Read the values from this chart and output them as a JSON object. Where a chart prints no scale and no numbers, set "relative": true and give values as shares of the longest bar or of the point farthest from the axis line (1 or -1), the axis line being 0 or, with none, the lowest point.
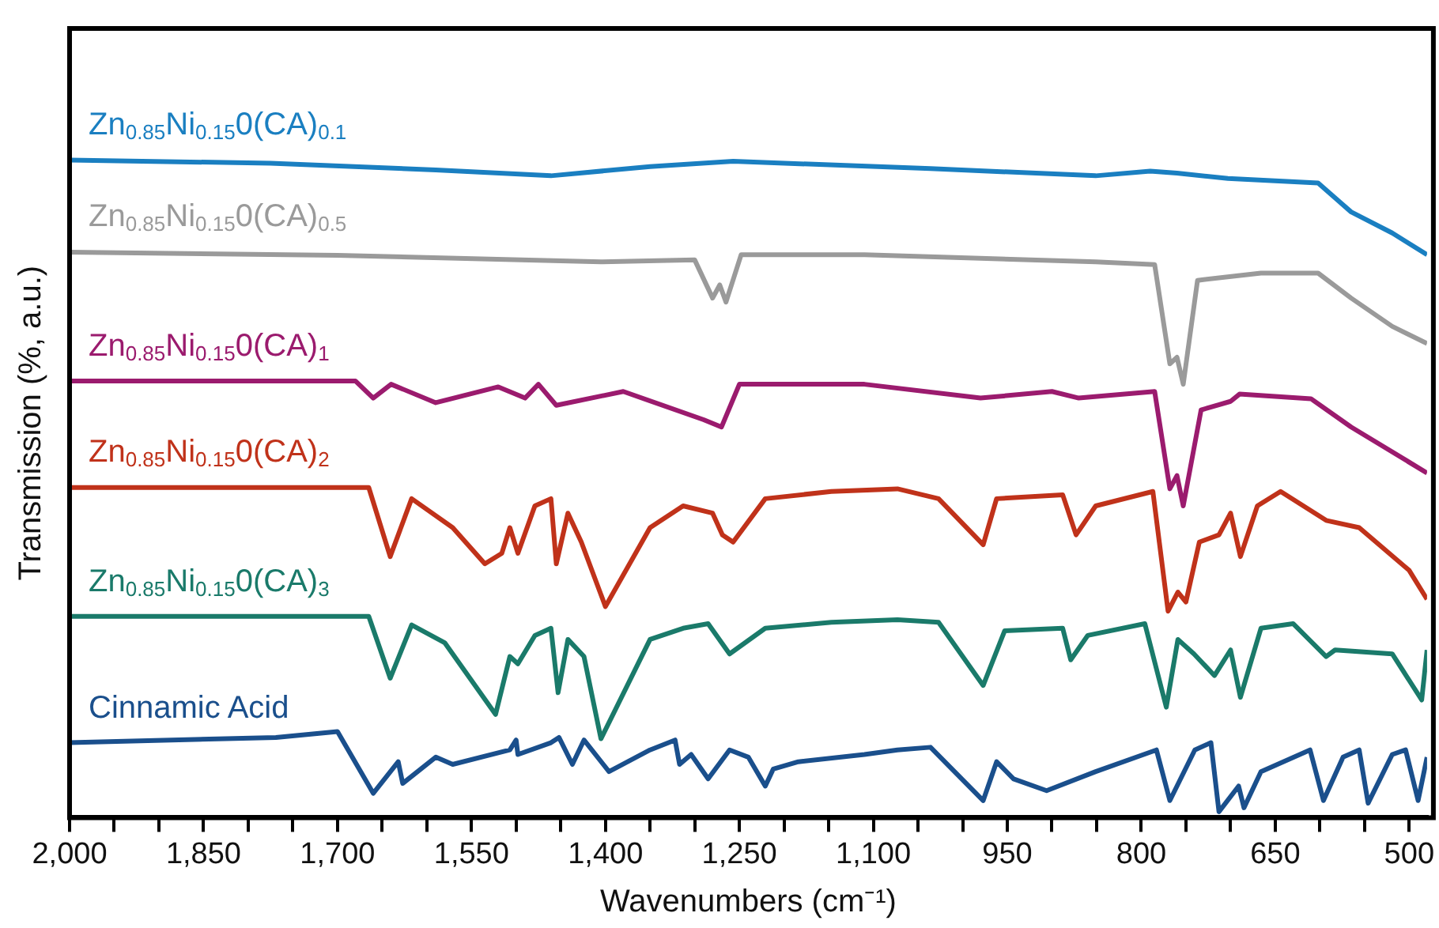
{
  "chart_data": {
    "type": "line",
    "relative": true,
    "xlabel": "Wavenumbers (cm⁻¹)",
    "ylabel": "Transmission (%, a.u.)",
    "marker": "none",
    "xlim": [
      2000,
      480
    ],
    "xticks": [
      {
        "value": 2000,
        "label": "2,000"
      },
      {
        "value": 1950,
        "label": null
      },
      {
        "value": 1900,
        "label": null
      },
      {
        "value": 1850,
        "label": "1,850"
      },
      {
        "value": 1800,
        "label": null
      },
      {
        "value": 1750,
        "label": null
      },
      {
        "value": 1700,
        "label": "1,700"
      },
      {
        "value": 1650,
        "label": null
      },
      {
        "value": 1600,
        "label": null
      },
      {
        "value": 1550,
        "label": "1,550"
      },
      {
        "value": 1500,
        "label": null
      },
      {
        "value": 1450,
        "label": null
      },
      {
        "value": 1400,
        "label": "1,400"
      },
      {
        "value": 1350,
        "label": null
      },
      {
        "value": 1300,
        "label": null
      },
      {
        "value": 1250,
        "label": "1,250"
      },
      {
        "value": 1200,
        "label": null
      },
      {
        "value": 1150,
        "label": null
      },
      {
        "value": 1100,
        "label": "1,100"
      },
      {
        "value": 1050,
        "label": null
      },
      {
        "value": 1000,
        "label": null
      },
      950,
      {
        "value": 900,
        "label": null
      },
      {
        "value": 850,
        "label": null
      },
      800,
      {
        "value": 750,
        "label": null
      },
      {
        "value": 700,
        "label": null
      },
      650,
      {
        "value": 600,
        "label": null
      },
      {
        "value": 550,
        "label": null
      },
      500
    ],
    "series": [
      {
        "name": "Zn$_{0.85}$Ni$_{0.15}$0(CA)$_{0.1}$",
        "color": "#1a7fc1",
        "x": [
          2000,
          1775,
          1590,
          1461,
          1350,
          1257,
          1036,
          851,
          790,
          760,
          703,
          602,
          565,
          519,
          480
        ],
        "values": [
          1.0,
          0.995,
          0.985,
          0.976,
          0.99,
          0.998,
          0.987,
          0.976,
          0.983,
          0.98,
          0.972,
          0.965,
          0.921,
          0.889,
          0.856
        ]
      },
      {
        "name": "Zn$_{0.85}$Ni$_{0.15}$0(CA)$_{0.5}$",
        "color": "#9a9a9a",
        "x": [
          2000,
          1700,
          1405,
          1300,
          1280,
          1272,
          1265,
          1248,
          1110,
          851,
          785,
          768,
          760,
          753,
          737,
          666,
          602,
          565,
          519,
          480
        ],
        "values": [
          0.86,
          0.855,
          0.845,
          0.848,
          0.79,
          0.81,
          0.784,
          0.856,
          0.856,
          0.845,
          0.841,
          0.69,
          0.7,
          0.659,
          0.817,
          0.828,
          0.828,
          0.79,
          0.747,
          0.721
        ]
      },
      {
        "name": "Zn$_{0.85}$Ni$_{0.15}$0(CA)$_{1}$",
        "color": "#9b1b6e",
        "x": [
          2000,
          1680,
          1660,
          1640,
          1590,
          1520,
          1490,
          1475,
          1455,
          1380,
          1290,
          1270,
          1250,
          1110,
          980,
          900,
          870,
          785,
          768,
          760,
          753,
          733,
          700,
          690,
          610,
          565,
          480
        ],
        "values": [
          0.664,
          0.664,
          0.638,
          0.659,
          0.631,
          0.655,
          0.638,
          0.659,
          0.627,
          0.648,
          0.605,
          0.594,
          0.659,
          0.659,
          0.638,
          0.648,
          0.638,
          0.648,
          0.5,
          0.52,
          0.474,
          0.62,
          0.633,
          0.644,
          0.637,
          0.594,
          0.524
        ]
      },
      {
        "name": "Zn$_{0.85}$Ni$_{0.15}$0(CA)$_{2}$",
        "color": "#c0321a",
        "x": [
          2000,
          1665,
          1641,
          1617,
          1571,
          1535,
          1516,
          1507,
          1498,
          1479,
          1461,
          1455,
          1442,
          1427,
          1400,
          1350,
          1313,
          1280,
          1269,
          1257,
          1221,
          1147,
          1073,
          1027,
          977,
          962,
          888,
          873,
          851,
          787,
          770,
          759,
          750,
          735,
          713,
          700,
          689,
          670,
          644,
          593,
          556,
          500,
          480
        ],
        "values": [
          0.502,
          0.502,
          0.397,
          0.485,
          0.441,
          0.386,
          0.402,
          0.441,
          0.402,
          0.474,
          0.485,
          0.386,
          0.463,
          0.419,
          0.321,
          0.441,
          0.474,
          0.463,
          0.43,
          0.419,
          0.485,
          0.496,
          0.5,
          0.485,
          0.415,
          0.485,
          0.491,
          0.43,
          0.474,
          0.496,
          0.314,
          0.343,
          0.328,
          0.419,
          0.43,
          0.463,
          0.397,
          0.474,
          0.496,
          0.452,
          0.441,
          0.376,
          0.332
        ]
      },
      {
        "name": "Zn$_{0.85}$Ni$_{0.15}$0(CA)$_{3}$",
        "color": "#1a7a6a",
        "x": [
          2000,
          1665,
          1641,
          1617,
          1580,
          1523,
          1507,
          1498,
          1479,
          1461,
          1453,
          1442,
          1424,
          1405,
          1350,
          1313,
          1285,
          1261,
          1221,
          1147,
          1073,
          1027,
          977,
          953,
          888,
          879,
          860,
          796,
          772,
          759,
          741,
          718,
          700,
          689,
          666,
          630,
          593,
          583,
          519,
          486,
          480
        ],
        "values": [
          0.306,
          0.306,
          0.212,
          0.293,
          0.266,
          0.157,
          0.245,
          0.234,
          0.277,
          0.288,
          0.19,
          0.271,
          0.245,
          0.12,
          0.271,
          0.288,
          0.295,
          0.249,
          0.288,
          0.297,
          0.301,
          0.297,
          0.201,
          0.284,
          0.288,
          0.24,
          0.277,
          0.295,
          0.168,
          0.271,
          0.249,
          0.216,
          0.255,
          0.183,
          0.288,
          0.295,
          0.245,
          0.255,
          0.249,
          0.179,
          0.255
        ]
      },
      {
        "name": "Cinnamic Acid",
        "color": "#1a4f8c",
        "x": [
          2000,
          1769,
          1700,
          1660,
          1632,
          1627,
          1590,
          1571,
          1507,
          1500,
          1498,
          1461,
          1452,
          1437,
          1424,
          1396,
          1350,
          1322,
          1317,
          1304,
          1285,
          1261,
          1240,
          1221,
          1212,
          1184,
          1110,
          1073,
          1036,
          977,
          962,
          943,
          906,
          851,
          783,
          768,
          740,
          722,
          713,
          691,
          685,
          666,
          611,
          596,
          574,
          556,
          546,
          519,
          504,
          490,
          480
        ],
        "values": [
          0.114,
          0.122,
          0.131,
          0.037,
          0.085,
          0.052,
          0.092,
          0.081,
          0.103,
          0.118,
          0.096,
          0.114,
          0.122,
          0.081,
          0.118,
          0.07,
          0.103,
          0.118,
          0.081,
          0.096,
          0.059,
          0.103,
          0.092,
          0.048,
          0.074,
          0.085,
          0.096,
          0.103,
          0.107,
          0.026,
          0.085,
          0.059,
          0.041,
          0.07,
          0.103,
          0.026,
          0.103,
          0.114,
          0.009,
          0.048,
          0.015,
          0.07,
          0.103,
          0.026,
          0.092,
          0.103,
          0.022,
          0.096,
          0.103,
          0.026,
          0.092
        ]
      }
    ]
  }
}
